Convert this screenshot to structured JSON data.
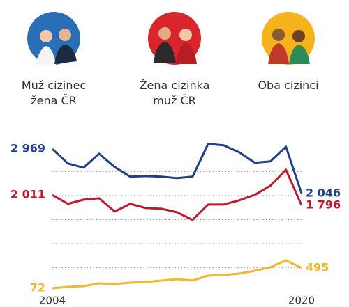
{
  "chart_data": {
    "type": "line",
    "x": [
      2004,
      2005,
      2006,
      2007,
      2008,
      2009,
      2010,
      2011,
      2012,
      2013,
      2014,
      2015,
      2016,
      2017,
      2018,
      2019,
      2020
    ],
    "xlim": [
      2004,
      2020
    ],
    "xticks": [
      2004,
      2020
    ],
    "ylim": [
      0,
      3100
    ],
    "yticks": [
      500,
      1000,
      1500,
      2000,
      2500
    ],
    "grid": true,
    "series": [
      {
        "name": "Muž cizinec žena ČR",
        "color": "#1f3f8a",
        "values": [
          2969,
          2668,
          2581,
          2871,
          2596,
          2393,
          2407,
          2393,
          2364,
          2393,
          3074,
          3045,
          2900,
          2683,
          2712,
          3016,
          2046
        ],
        "value_labels": [
          "2 969",
          null,
          null,
          null,
          null,
          null,
          null,
          null,
          null,
          null,
          null,
          null,
          null,
          null,
          null,
          null,
          "2 046"
        ]
      },
      {
        "name": "Žena cizinka muž ČR",
        "color": "#c0182c",
        "values": [
          2011,
          1827,
          1914,
          1943,
          1668,
          1827,
          1740,
          1726,
          1653,
          1494,
          1813,
          1813,
          1900,
          2016,
          2204,
          2538,
          1796
        ],
        "value_labels": [
          "2 011",
          null,
          null,
          null,
          null,
          null,
          null,
          null,
          null,
          null,
          null,
          null,
          null,
          null,
          null,
          null,
          "1 796"
        ]
      },
      {
        "name": "Oba cizinci",
        "color": "#f5b52e",
        "values": [
          72,
          101,
          116,
          174,
          160,
          189,
          203,
          232,
          261,
          232,
          334,
          348,
          377,
          435,
          508,
          653,
          495
        ]
      }
    ]
  }
}
